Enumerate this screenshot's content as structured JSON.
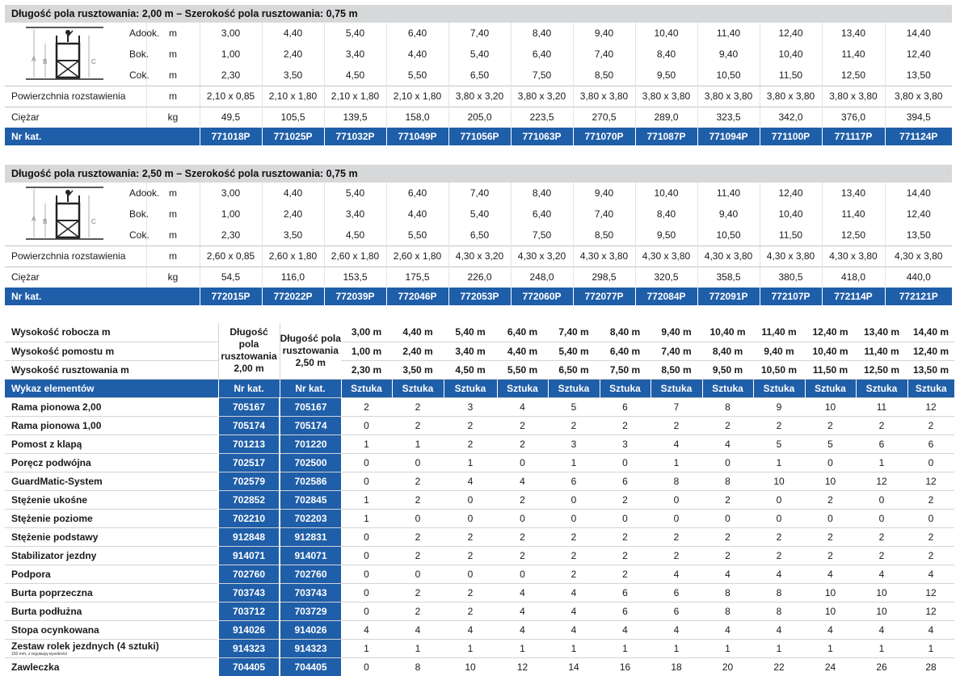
{
  "colors": {
    "accent": "#1f5ea8",
    "header_bg": "#d7d8da"
  },
  "sections": [
    {
      "title": "Długość pola rusztowania: 2,00 m – Szerokość pola rusztowania: 0,75 m",
      "rows": [
        {
          "letter": "A",
          "mid": "do",
          "label": "ok.",
          "unit": "m",
          "values": [
            "3,00",
            "4,40",
            "5,40",
            "6,40",
            "7,40",
            "8,40",
            "9,40",
            "10,40",
            "11,40",
            "12,40",
            "13,40",
            "14,40"
          ]
        },
        {
          "letter": "B",
          "mid": "",
          "label": "ok.",
          "unit": "m",
          "values": [
            "1,00",
            "2,40",
            "3,40",
            "4,40",
            "5,40",
            "6,40",
            "7,40",
            "8,40",
            "9,40",
            "10,40",
            "11,40",
            "12,40"
          ]
        },
        {
          "letter": "C",
          "mid": "",
          "label": "ok.",
          "unit": "m",
          "values": [
            "2,30",
            "3,50",
            "4,50",
            "5,50",
            "6,50",
            "7,50",
            "8,50",
            "9,50",
            "10,50",
            "11,50",
            "12,50",
            "13,50"
          ]
        }
      ],
      "area": {
        "label": "Powierzchnia rozstawienia",
        "unit": "m",
        "values": [
          "2,10 x 0,85",
          "2,10 x 1,80",
          "2,10 x 1,80",
          "2,10 x 1,80",
          "3,80 x 3,20",
          "3,80 x 3,20",
          "3,80 x 3,80",
          "3,80 x 3,80",
          "3,80 x 3,80",
          "3,80 x 3,80",
          "3,80 x 3,80",
          "3,80 x 3,80"
        ]
      },
      "weight": {
        "label": "Ciężar",
        "unit": "kg",
        "values": [
          "49,5",
          "105,5",
          "139,5",
          "158,0",
          "205,0",
          "223,5",
          "270,5",
          "289,0",
          "323,5",
          "342,0",
          "376,0",
          "394,5"
        ]
      },
      "catalog": {
        "label": "Nr kat.",
        "values": [
          "771018P",
          "771025P",
          "771032P",
          "771049P",
          "771056P",
          "771063P",
          "771070P",
          "771087P",
          "771094P",
          "771100P",
          "771117P",
          "771124P"
        ]
      }
    },
    {
      "title": "Długość pola rusztowania: 2,50 m – Szerokość pola rusztowania: 0,75 m",
      "rows": [
        {
          "letter": "A",
          "mid": "do",
          "label": "ok.",
          "unit": "m",
          "values": [
            "3,00",
            "4,40",
            "5,40",
            "6,40",
            "7,40",
            "8,40",
            "9,40",
            "10,40",
            "11,40",
            "12,40",
            "13,40",
            "14,40"
          ]
        },
        {
          "letter": "B",
          "mid": "",
          "label": "ok.",
          "unit": "m",
          "values": [
            "1,00",
            "2,40",
            "3,40",
            "4,40",
            "5,40",
            "6,40",
            "7,40",
            "8,40",
            "9,40",
            "10,40",
            "11,40",
            "12,40"
          ]
        },
        {
          "letter": "C",
          "mid": "",
          "label": "ok.",
          "unit": "m",
          "values": [
            "2,30",
            "3,50",
            "4,50",
            "5,50",
            "6,50",
            "7,50",
            "8,50",
            "9,50",
            "10,50",
            "11,50",
            "12,50",
            "13,50"
          ]
        }
      ],
      "area": {
        "label": "Powierzchnia rozstawienia",
        "unit": "m",
        "values": [
          "2,60 x 0,85",
          "2,60 x 1,80",
          "2,60 x 1,80",
          "2,60 x 1,80",
          "4,30 x 3,20",
          "4,30 x 3,20",
          "4,30 x 3,80",
          "4,30 x 3,80",
          "4,30 x 3,80",
          "4,30 x 3,80",
          "4,30 x 3,80",
          "4,30 x 3,80"
        ]
      },
      "weight": {
        "label": "Ciężar",
        "unit": "kg",
        "values": [
          "54,5",
          "116,0",
          "153,5",
          "175,5",
          "226,0",
          "248,0",
          "298,5",
          "320,5",
          "358,5",
          "380,5",
          "418,0",
          "440,0"
        ]
      },
      "catalog": {
        "label": "Nr kat.",
        "values": [
          "772015P",
          "772022P",
          "772039P",
          "772046P",
          "772053P",
          "772060P",
          "772077P",
          "772084P",
          "772091P",
          "772107P",
          "772114P",
          "772121P"
        ]
      }
    }
  ],
  "diagram": {
    "labels": [
      "A",
      "B",
      "C"
    ]
  },
  "materials": {
    "height_rows": [
      {
        "label": "Wysokość robocza m",
        "values": [
          "3,00 m",
          "4,40 m",
          "5,40 m",
          "6,40 m",
          "7,40 m",
          "8,40 m",
          "9,40 m",
          "10,40 m",
          "11,40 m",
          "12,40 m",
          "13,40 m",
          "14,40 m"
        ]
      },
      {
        "label": "Wysokość pomostu m",
        "values": [
          "1,00 m",
          "2,40 m",
          "3,40 m",
          "4,40 m",
          "5,40 m",
          "6,40 m",
          "7,40 m",
          "8,40 m",
          "9,40 m",
          "10,40 m",
          "11,40 m",
          "12,40 m"
        ]
      },
      {
        "label": "Wysokość rusztowania m",
        "values": [
          "2,30 m",
          "3,50 m",
          "4,50 m",
          "5,50 m",
          "6,50 m",
          "7,50 m",
          "8,50 m",
          "9,50 m",
          "10,50 m",
          "11,50 m",
          "12,50 m",
          "13,50 m"
        ]
      }
    ],
    "col_title_200": "Długość pola rusztowania 2,00 m",
    "col_title_250": "Długość pola rusztowania 2,50 m",
    "list_header": "Wykaz elementów",
    "kat_header": "Nr kat.",
    "unit_header": "Sztuka",
    "items": [
      {
        "name": "Rama pionowa 2,00",
        "kat1": "705167",
        "kat2": "705167",
        "q": [
          "2",
          "2",
          "3",
          "4",
          "5",
          "6",
          "7",
          "8",
          "9",
          "10",
          "11",
          "12"
        ]
      },
      {
        "name": "Rama pionowa 1,00",
        "kat1": "705174",
        "kat2": "705174",
        "q": [
          "0",
          "2",
          "2",
          "2",
          "2",
          "2",
          "2",
          "2",
          "2",
          "2",
          "2",
          "2"
        ]
      },
      {
        "name": "Pomost z klapą",
        "kat1": "701213",
        "kat2": "701220",
        "q": [
          "1",
          "1",
          "2",
          "2",
          "3",
          "3",
          "4",
          "4",
          "5",
          "5",
          "6",
          "6"
        ]
      },
      {
        "name": "Poręcz podwójna",
        "kat1": "702517",
        "kat2": "702500",
        "q": [
          "0",
          "0",
          "1",
          "0",
          "1",
          "0",
          "1",
          "0",
          "1",
          "0",
          "1",
          "0"
        ]
      },
      {
        "name": "GuardMatic-System",
        "kat1": "702579",
        "kat2": "702586",
        "q": [
          "0",
          "2",
          "4",
          "4",
          "6",
          "6",
          "8",
          "8",
          "10",
          "10",
          "12",
          "12"
        ]
      },
      {
        "name": "Stężenie ukośne",
        "kat1": "702852",
        "kat2": "702845",
        "q": [
          "1",
          "2",
          "0",
          "2",
          "0",
          "2",
          "0",
          "2",
          "0",
          "2",
          "0",
          "2"
        ]
      },
      {
        "name": "Stężenie poziome",
        "kat1": "702210",
        "kat2": "702203",
        "q": [
          "1",
          "0",
          "0",
          "0",
          "0",
          "0",
          "0",
          "0",
          "0",
          "0",
          "0",
          "0"
        ]
      },
      {
        "name": "Stężenie podstawy",
        "kat1": "912848",
        "kat2": "912831",
        "q": [
          "0",
          "2",
          "2",
          "2",
          "2",
          "2",
          "2",
          "2",
          "2",
          "2",
          "2",
          "2"
        ]
      },
      {
        "name": "Stabilizator jezdny",
        "kat1": "914071",
        "kat2": "914071",
        "q": [
          "0",
          "2",
          "2",
          "2",
          "2",
          "2",
          "2",
          "2",
          "2",
          "2",
          "2",
          "2"
        ]
      },
      {
        "name": "Podpora",
        "kat1": "702760",
        "kat2": "702760",
        "q": [
          "0",
          "0",
          "0",
          "0",
          "2",
          "2",
          "4",
          "4",
          "4",
          "4",
          "4",
          "4"
        ]
      },
      {
        "name": "Burta poprzeczna",
        "kat1": "703743",
        "kat2": "703743",
        "q": [
          "0",
          "2",
          "2",
          "4",
          "4",
          "6",
          "6",
          "8",
          "8",
          "10",
          "10",
          "12"
        ]
      },
      {
        "name": "Burta podłużna",
        "kat1": "703712",
        "kat2": "703729",
        "q": [
          "0",
          "2",
          "2",
          "4",
          "4",
          "6",
          "6",
          "8",
          "8",
          "10",
          "10",
          "12"
        ]
      },
      {
        "name": "Stopa ocynkowana",
        "kat1": "914026",
        "kat2": "914026",
        "q": [
          "4",
          "4",
          "4",
          "4",
          "4",
          "4",
          "4",
          "4",
          "4",
          "4",
          "4",
          "4"
        ]
      },
      {
        "name": "Zestaw rolek jezdnych (4 sztuki)",
        "note": "150 mm, z regulacją wysokości",
        "kat1": "914323",
        "kat2": "914323",
        "q": [
          "1",
          "1",
          "1",
          "1",
          "1",
          "1",
          "1",
          "1",
          "1",
          "1",
          "1",
          "1"
        ]
      },
      {
        "name": "Zawleczka",
        "kat1": "704405",
        "kat2": "704405",
        "q": [
          "0",
          "8",
          "10",
          "12",
          "14",
          "16",
          "18",
          "20",
          "22",
          "24",
          "26",
          "28"
        ]
      }
    ]
  }
}
